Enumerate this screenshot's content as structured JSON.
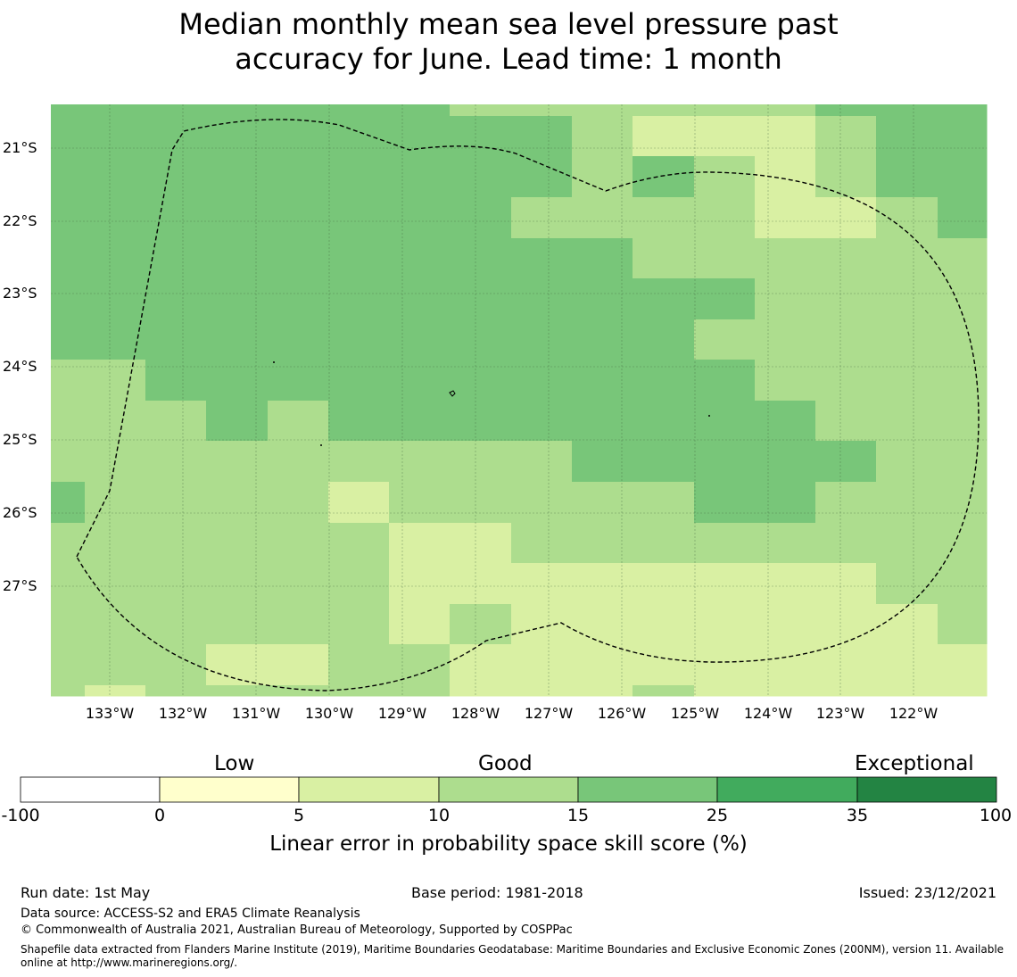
{
  "title": {
    "line1": "Median monthly mean sea level pressure past",
    "line2": "accuracy for June. Lead time: 1 month"
  },
  "map": {
    "lon_range": [
      -133.8,
      -121.0
    ],
    "lat_range": [
      -28.5,
      -20.4
    ],
    "x_ticks": [
      "133°W",
      "132°W",
      "131°W",
      "130°W",
      "129°W",
      "128°W",
      "127°W",
      "126°W",
      "125°W",
      "124°W",
      "123°W",
      "122°W"
    ],
    "y_ticks": [
      "21°S",
      "22°S",
      "23°S",
      "24°S",
      "25°S",
      "26°S",
      "27°S"
    ],
    "grid": true,
    "eez_boundary": "dashed black line"
  },
  "colorbar": {
    "categories": [
      "Low",
      "Good",
      "Exceptional"
    ],
    "ticks": [
      "-100",
      "0",
      "5",
      "10",
      "15",
      "25",
      "35",
      "100"
    ],
    "colors": [
      "#ffffff",
      "#ffffcc",
      "#d9f0a3",
      "#addd8e",
      "#78c679",
      "#41ab5d",
      "#238443"
    ],
    "label": "Linear error in probability space skill score (%)"
  },
  "footer": {
    "run_date": "Run date: 1st May",
    "base_period": "Base period: 1981-2018",
    "issued": "Issued: 23/12/2021",
    "data_source": "Data source: ACCESS-S2 and ERA5 Climate Reanalysis",
    "copyright": "© Commonwealth of Australia 2021, Australian Bureau of Meteorology, Supported by COSPPac",
    "shapefile_note": "Shapefile data extracted from Flanders Marine Institute (2019), Maritime Boundaries Geodatabase: Maritime Boundaries and Exclusive Economic Zones (200NM), version 11. Available online at http://www.marineregions.org/."
  }
}
